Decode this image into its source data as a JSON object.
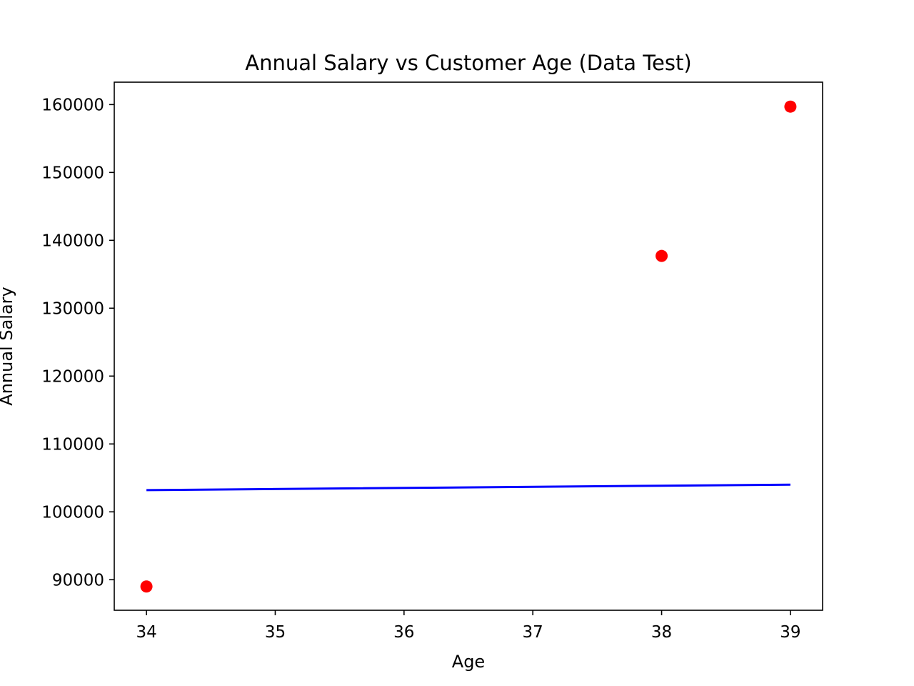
{
  "chart_data": {
    "type": "scatter",
    "title": "Annual Salary vs Customer Age (Data Test)",
    "xlabel": "Age",
    "ylabel": "Annual Salary",
    "xlim": [
      33.75,
      39.25
    ],
    "ylim": [
      85500,
      163300
    ],
    "xticks": [
      34,
      35,
      36,
      37,
      38,
      39
    ],
    "yticks": [
      90000,
      100000,
      110000,
      120000,
      130000,
      140000,
      150000,
      160000
    ],
    "grid": false,
    "series": [
      {
        "kind": "scatter",
        "color": "#ff0000",
        "points": [
          {
            "x": 34,
            "y": 89000
          },
          {
            "x": 38,
            "y": 137700
          },
          {
            "x": 39,
            "y": 159700
          }
        ]
      },
      {
        "kind": "line",
        "color": "#0000ff",
        "points": [
          {
            "x": 34,
            "y": 103200
          },
          {
            "x": 38,
            "y": 103850
          },
          {
            "x": 39,
            "y": 104000
          }
        ]
      }
    ]
  }
}
